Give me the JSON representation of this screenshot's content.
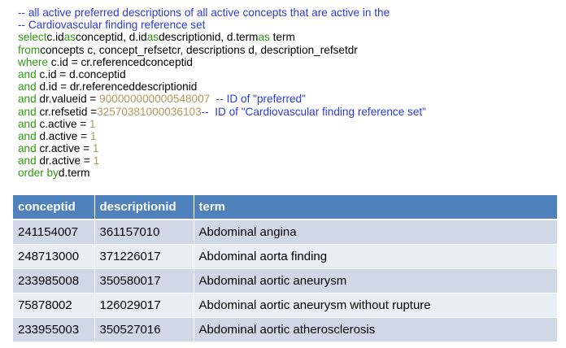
{
  "sql": {
    "lines": [
      [
        {
          "t": "-- all active preferred descriptions of all active concepts that are active in the",
          "c": "cm"
        }
      ],
      [
        {
          "t": "-- Cardiovascular finding reference set",
          "c": "cm"
        }
      ],
      [
        {
          "t": "select",
          "c": "kw"
        },
        {
          "t": "c.id",
          "c": "tx"
        },
        {
          "t": "as",
          "c": "kw"
        },
        {
          "t": "conceptid, d.id",
          "c": "tx"
        },
        {
          "t": "as",
          "c": "kw"
        },
        {
          "t": "descriptionid, d.term",
          "c": "tx"
        },
        {
          "t": "as",
          "c": "kw"
        },
        {
          "t": " term",
          "c": "tx"
        }
      ],
      [
        {
          "t": "from",
          "c": "kw"
        },
        {
          "t": "concepts c, concept_refsetcr, descriptions d, description_refsetdr",
          "c": "tx"
        }
      ],
      [
        {
          "t": "where",
          "c": "kw"
        },
        {
          "t": " c.id = cr.referencedconceptid",
          "c": "tx"
        }
      ],
      [
        {
          "t": "and",
          "c": "kw"
        },
        {
          "t": " c.id = d.conceptid",
          "c": "tx"
        }
      ],
      [
        {
          "t": "and",
          "c": "kw"
        },
        {
          "t": " d.id = dr.referenceddescriptionid",
          "c": "tx"
        }
      ],
      [
        {
          "t": "and",
          "c": "kw"
        },
        {
          "t": " dr.valueid = ",
          "c": "tx"
        },
        {
          "t": "900000000000548007",
          "c": "num"
        },
        {
          "t": "  -- ID of \"preferred\"",
          "c": "cm"
        }
      ],
      [
        {
          "t": "and",
          "c": "kw"
        },
        {
          "t": " cr.refsetid =",
          "c": "tx"
        },
        {
          "t": "32570381000036103",
          "c": "num"
        },
        {
          "t": "--  ID of \"Cardiovascular finding reference set\"",
          "c": "cm"
        }
      ],
      [
        {
          "t": "and",
          "c": "kw"
        },
        {
          "t": " c.active = ",
          "c": "tx"
        },
        {
          "t": "1",
          "c": "num"
        }
      ],
      [
        {
          "t": "and",
          "c": "kw"
        },
        {
          "t": " d.active = ",
          "c": "tx"
        },
        {
          "t": "1",
          "c": "num"
        }
      ],
      [
        {
          "t": "and",
          "c": "kw"
        },
        {
          "t": " cr.active = ",
          "c": "tx"
        },
        {
          "t": "1",
          "c": "num"
        }
      ],
      [
        {
          "t": "and",
          "c": "kw"
        },
        {
          "t": " dr.active = ",
          "c": "tx"
        },
        {
          "t": "1",
          "c": "num"
        }
      ],
      [
        {
          "t": "order by",
          "c": "kw"
        },
        {
          "t": "d.term",
          "c": "tx"
        }
      ]
    ]
  },
  "colors": {
    "comment": "#2f3bd8",
    "keyword": "#2e9a10",
    "number": "#b19a5c",
    "header": "#4f81bd",
    "row_odd": "#d0d8e8",
    "row_even": "#e9edf4"
  },
  "table": {
    "headers": [
      "conceptid",
      "descriptionid",
      "term"
    ],
    "rows": [
      [
        "241154007",
        "361157010",
        "Abdominal angina"
      ],
      [
        "248713000",
        "371226017",
        "Abdominal aorta finding"
      ],
      [
        "233985008",
        "350580017",
        "Abdominal aortic aneurysm"
      ],
      [
        "75878002",
        "126029017",
        "Abdominal aortic aneurysm without rupture"
      ],
      [
        "233955003",
        "350527016",
        "Abdominal aortic atherosclerosis"
      ]
    ]
  }
}
